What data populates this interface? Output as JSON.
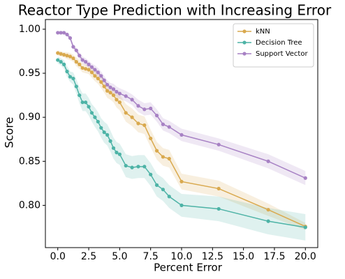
{
  "chart_data": {
    "type": "line",
    "title": "Reactor Type Prediction with Increasing Error",
    "x_label": "Percent Error",
    "y_label": "Score",
    "x": [
      0,
      0.25,
      0.5,
      0.75,
      1,
      1.25,
      1.5,
      1.75,
      2,
      2.25,
      2.5,
      2.75,
      3,
      3.25,
      3.5,
      3.75,
      4,
      4.25,
      4.5,
      4.75,
      5,
      5.5,
      6,
      6.5,
      7,
      7.5,
      8,
      8.5,
      9,
      10,
      13,
      17,
      20
    ],
    "series": [
      {
        "name": "kNN",
        "color": "#d9a94e",
        "values": [
          0.973,
          0.972,
          0.971,
          0.97,
          0.969,
          0.967,
          0.963,
          0.96,
          0.956,
          0.955,
          0.954,
          0.951,
          0.947,
          0.944,
          0.94,
          0.935,
          0.93,
          0.928,
          0.925,
          0.92,
          0.917,
          0.905,
          0.9,
          0.893,
          0.891,
          0.876,
          0.862,
          0.855,
          0.853,
          0.827,
          0.819,
          0.795,
          0.776
        ],
        "error": [
          0.003,
          0.003,
          0.003,
          0.004,
          0.004,
          0.004,
          0.005,
          0.005,
          0.005,
          0.005,
          0.005,
          0.006,
          0.006,
          0.006,
          0.007,
          0.007,
          0.008,
          0.008,
          0.008,
          0.009,
          0.009,
          0.01,
          0.01,
          0.01,
          0.01,
          0.01,
          0.01,
          0.01,
          0.01,
          0.009,
          0.009,
          0.007,
          0.004
        ]
      },
      {
        "name": "Decision Tree",
        "color": "#4db3a6",
        "values": [
          0.965,
          0.963,
          0.96,
          0.952,
          0.946,
          0.944,
          0.935,
          0.925,
          0.917,
          0.917,
          0.912,
          0.905,
          0.9,
          0.895,
          0.888,
          0.883,
          0.88,
          0.873,
          0.865,
          0.86,
          0.858,
          0.845,
          0.843,
          0.844,
          0.844,
          0.835,
          0.823,
          0.818,
          0.81,
          0.8,
          0.796,
          0.782,
          0.775
        ],
        "error": [
          0.004,
          0.004,
          0.005,
          0.006,
          0.006,
          0.007,
          0.008,
          0.009,
          0.01,
          0.01,
          0.01,
          0.01,
          0.011,
          0.011,
          0.011,
          0.012,
          0.012,
          0.012,
          0.012,
          0.012,
          0.012,
          0.013,
          0.013,
          0.013,
          0.013,
          0.013,
          0.013,
          0.013,
          0.013,
          0.013,
          0.014,
          0.015,
          0.015
        ]
      },
      {
        "name": "Support Vector",
        "color": "#a781c4",
        "values": [
          0.996,
          0.996,
          0.996,
          0.994,
          0.99,
          0.98,
          0.976,
          0.97,
          0.965,
          0.963,
          0.96,
          0.957,
          0.954,
          0.951,
          0.947,
          0.942,
          0.937,
          0.934,
          0.932,
          0.929,
          0.927,
          0.924,
          0.92,
          0.913,
          0.909,
          0.91,
          0.902,
          0.892,
          0.889,
          0.88,
          0.869,
          0.85,
          0.831
        ],
        "error": [
          0.002,
          0.002,
          0.002,
          0.002,
          0.003,
          0.003,
          0.003,
          0.004,
          0.004,
          0.004,
          0.004,
          0.004,
          0.005,
          0.005,
          0.005,
          0.005,
          0.005,
          0.005,
          0.006,
          0.006,
          0.006,
          0.006,
          0.006,
          0.007,
          0.007,
          0.007,
          0.007,
          0.007,
          0.007,
          0.007,
          0.007,
          0.008,
          0.008
        ]
      }
    ],
    "xlim": [
      -1,
      21
    ],
    "ylim": [
      0.752,
      1.011
    ],
    "xticks": [
      {
        "value": 0,
        "label": "0.0"
      },
      {
        "value": 2.5,
        "label": "2.5"
      },
      {
        "value": 5,
        "label": "5.0"
      },
      {
        "value": 7.5,
        "label": "7.5"
      },
      {
        "value": 10,
        "label": "10.0"
      },
      {
        "value": 12.5,
        "label": "12.5"
      },
      {
        "value": 15,
        "label": "15.0"
      },
      {
        "value": 17.5,
        "label": "17.5"
      },
      {
        "value": 20,
        "label": "20.0"
      }
    ],
    "yticks": [
      {
        "value": 0.8,
        "label": "0.80"
      },
      {
        "value": 0.85,
        "label": "0.85"
      },
      {
        "value": 0.9,
        "label": "0.90"
      },
      {
        "value": 0.95,
        "label": "0.95"
      },
      {
        "value": 1,
        "label": "1.00"
      }
    ],
    "legend": "upper right"
  }
}
